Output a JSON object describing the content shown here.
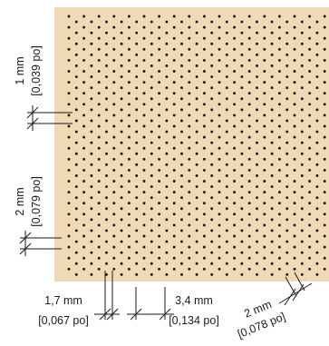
{
  "colors": {
    "panel": "#f0d9b5",
    "dot": "#1a1a1a",
    "line": "#1a1a1a"
  },
  "dot_pattern": {
    "layout": "staggered"
  },
  "dimensions": {
    "vertical_small": {
      "metric": "1 mm",
      "imperial": "[0,039 po]"
    },
    "vertical_large": {
      "metric": "2 mm",
      "imperial": "[0,079 po]"
    },
    "horizontal_small": {
      "metric": "1,7 mm",
      "imperial": "[0,067 po]"
    },
    "horizontal_large": {
      "metric": "3,4 mm",
      "imperial": "[0,134 po]"
    },
    "diagonal": {
      "metric": "2 mm",
      "imperial": "[0,078 po]"
    }
  }
}
